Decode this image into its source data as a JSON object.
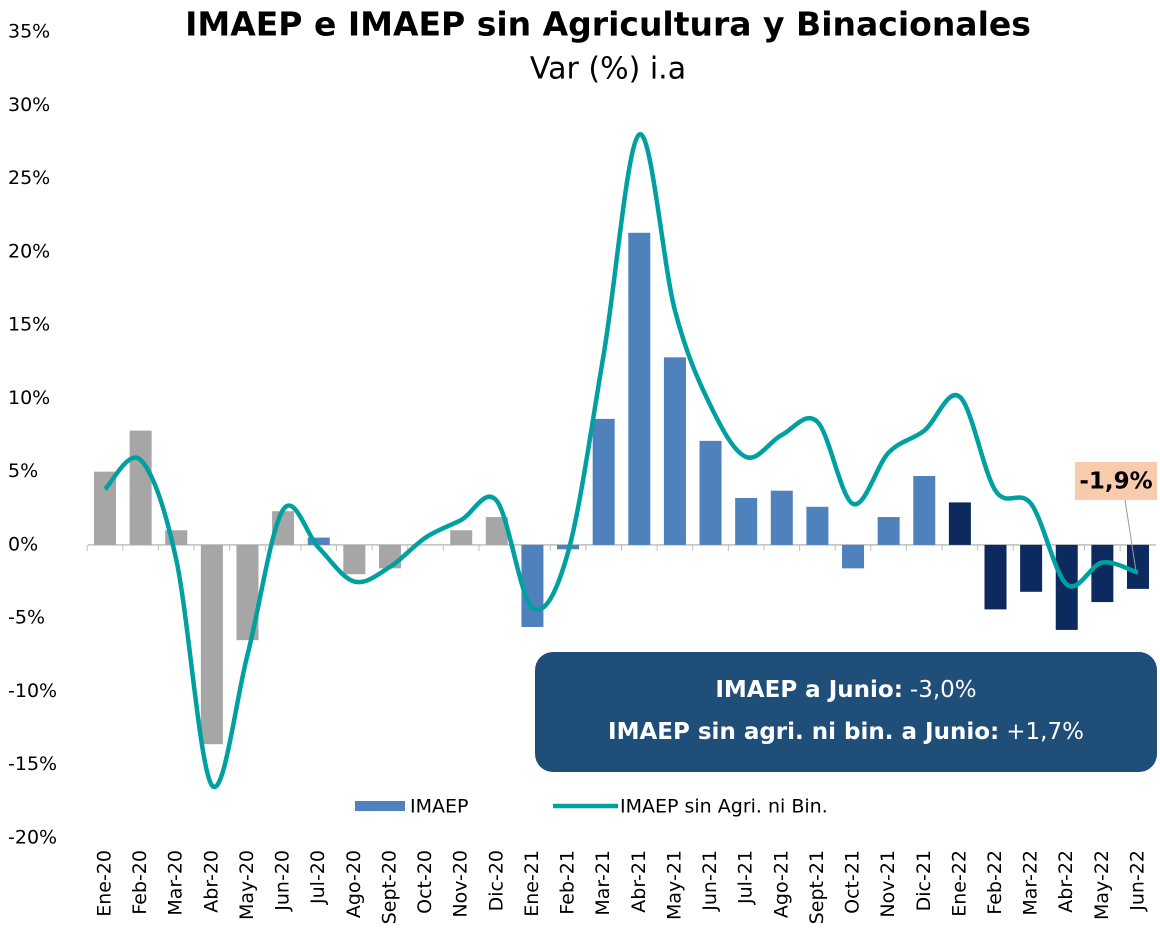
{
  "chart_data": {
    "type": "bar_line",
    "title": "IMAEP e IMAEP sin Agricultura y Binacionales",
    "subtitle": "Var (%) i.a",
    "categories": [
      "Ene-20",
      "Feb-20",
      "Mar-20",
      "Abr-20",
      "May-20",
      "Jun-20",
      "Jul-20",
      "Ago-20",
      "Sept-20",
      "Oct-20",
      "Nov-20",
      "Dic-20",
      "Ene-21",
      "Feb-21",
      "Mar-21",
      "Abr-21",
      "May-21",
      "Jun-21",
      "Jul-21",
      "Ago-21",
      "Sept-21",
      "Oct-21",
      "Nov-21",
      "Dic-21",
      "Ene-22",
      "Feb-22",
      "Mar-22",
      "Abr-22",
      "May-22",
      "Jun-22"
    ],
    "series": [
      {
        "name": "IMAEP",
        "kind": "bar",
        "color": "#4f81bd",
        "colors": [
          "#a6a6a6",
          "#a6a6a6",
          "#a6a6a6",
          "#a6a6a6",
          "#a6a6a6",
          "#a6a6a6",
          "#4f81bd",
          "#a6a6a6",
          "#a6a6a6",
          "#a6a6a6",
          "#a6a6a6",
          "#a6a6a6",
          "#4f81bd",
          "#4f81bd",
          "#4f81bd",
          "#4f81bd",
          "#4f81bd",
          "#4f81bd",
          "#4f81bd",
          "#4f81bd",
          "#4f81bd",
          "#4f81bd",
          "#4f81bd",
          "#4f81bd",
          "#0d2a5e",
          "#0d2a5e",
          "#0d2a5e",
          "#0d2a5e",
          "#0d2a5e",
          "#0d2a5e"
        ],
        "values": [
          5.0,
          7.8,
          1.0,
          -13.6,
          -6.5,
          2.3,
          0.5,
          -2.0,
          -1.6,
          0,
          1.0,
          1.9,
          -5.6,
          -0.3,
          8.6,
          21.3,
          12.8,
          7.1,
          3.2,
          3.7,
          2.6,
          -1.6,
          1.9,
          4.7,
          2.9,
          -4.4,
          -3.2,
          -5.8,
          -3.9,
          -3.0
        ]
      },
      {
        "name": "IMAEP sin Agri. ni Bin.",
        "kind": "line",
        "color": "#00a0a0",
        "values": [
          3.8,
          5.8,
          -1.0,
          -16.4,
          -7.5,
          2.4,
          -0.2,
          -2.5,
          -1.5,
          0.5,
          1.7,
          3.0,
          -4.3,
          -0.5,
          13.0,
          28.0,
          16.0,
          9.5,
          6.0,
          7.5,
          8.4,
          2.8,
          6.3,
          7.8,
          10.1,
          3.7,
          2.8,
          -2.7,
          -1.2,
          -1.9
        ]
      }
    ],
    "annotation": {
      "text": "-1,9%",
      "value": -1.9
    },
    "info_box": [
      {
        "label": "IMAEP a Junio:",
        "value": "-3,0%"
      },
      {
        "label": "IMAEP sin agri. ni bin. a Junio:",
        "value": "+1,7%"
      }
    ],
    "ylim": [
      -20,
      35
    ],
    "yticks": [
      {
        "value": -20,
        "label": "-20%"
      },
      {
        "value": -15,
        "label": "-15%"
      },
      {
        "value": -10,
        "label": "-10%"
      },
      {
        "value": -5,
        "label": "-5%"
      },
      {
        "value": 0,
        "label": "0%"
      },
      {
        "value": 5,
        "label": "5%"
      },
      {
        "value": 10,
        "label": "10%"
      },
      {
        "value": 15,
        "label": "15%"
      },
      {
        "value": 20,
        "label": "20%"
      },
      {
        "value": 25,
        "label": "25%"
      },
      {
        "value": 30,
        "label": "30%"
      },
      {
        "value": 35,
        "label": "35%"
      }
    ],
    "grid": false
  }
}
